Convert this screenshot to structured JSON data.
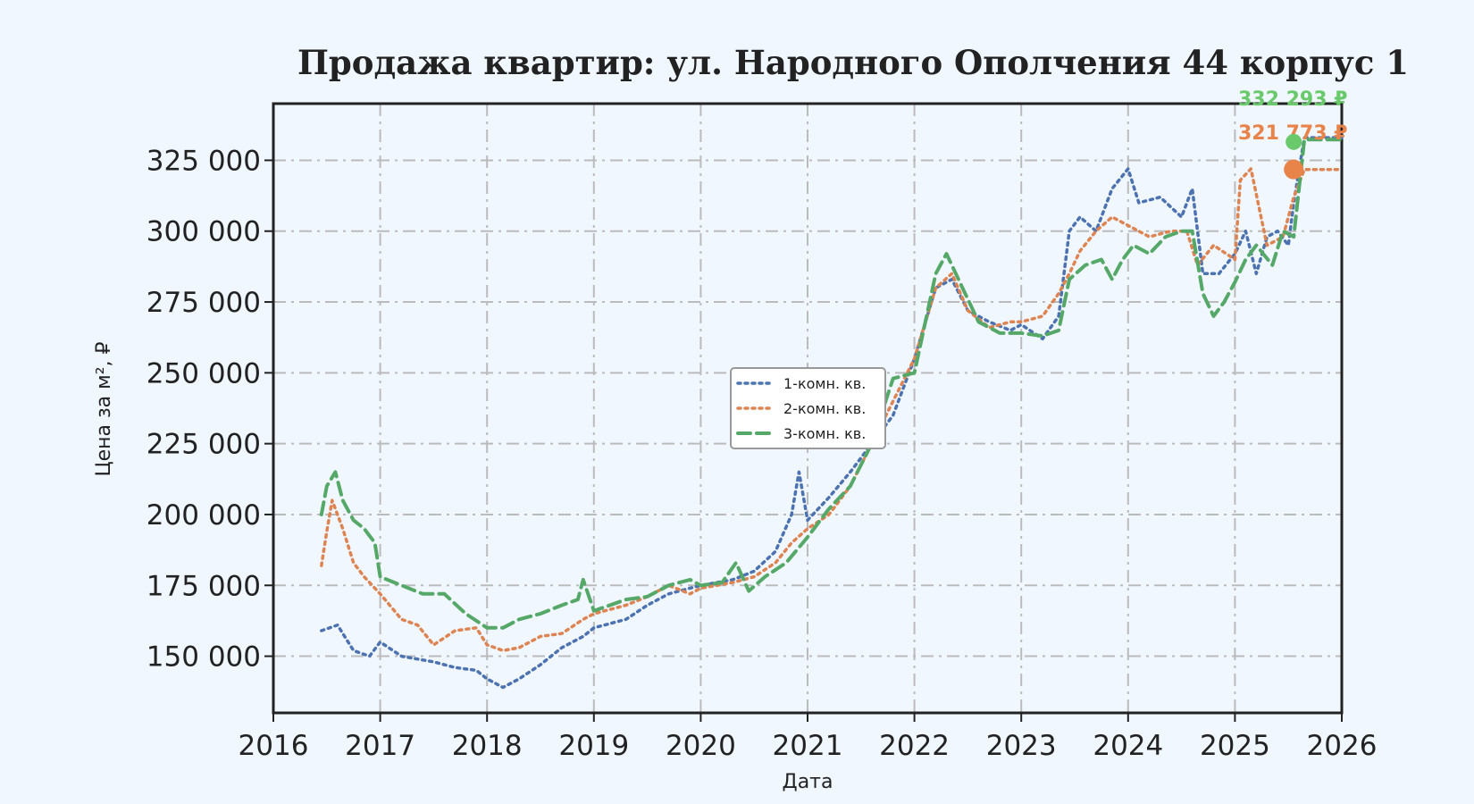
{
  "chart_data": {
    "type": "line",
    "title": "Продажа квартир: ул. Народного Ополчения 44 корпус 1",
    "xlabel": "Дата",
    "ylabel": "Цена за м², ₽",
    "xlim": [
      2016.0,
      2026.0
    ],
    "ylim": [
      130000,
      345000
    ],
    "x_ticks": [
      2016,
      2017,
      2018,
      2019,
      2020,
      2021,
      2022,
      2023,
      2024,
      2025,
      2026
    ],
    "x_tick_labels": [
      "2016",
      "2017",
      "2018",
      "2019",
      "2020",
      "2021",
      "2022",
      "2023",
      "2024",
      "2025",
      "2026"
    ],
    "y_ticks": [
      150000,
      175000,
      200000,
      225000,
      250000,
      275000,
      300000,
      325000
    ],
    "y_tick_labels": [
      "150 000",
      "175 000",
      "200 000",
      "225 000",
      "250 000",
      "275 000",
      "300 000",
      "325 000"
    ],
    "grid": true,
    "legend_position": "center",
    "series": [
      {
        "name": "1-комн. кв.",
        "color": "#4c72b0",
        "dash": "dotted",
        "x": [
          2016.45,
          2016.6,
          2016.75,
          2016.9,
          2017.0,
          2017.2,
          2017.5,
          2017.7,
          2017.9,
          2018.0,
          2018.15,
          2018.3,
          2018.5,
          2018.7,
          2018.9,
          2019.0,
          2019.3,
          2019.5,
          2019.7,
          2019.9,
          2020.0,
          2020.3,
          2020.5,
          2020.7,
          2020.85,
          2020.92,
          2021.0,
          2021.2,
          2021.4,
          2021.6,
          2021.8,
          2022.0,
          2022.2,
          2022.35,
          2022.5,
          2022.7,
          2022.9,
          2023.0,
          2023.2,
          2023.35,
          2023.45,
          2023.55,
          2023.7,
          2023.85,
          2024.0,
          2024.1,
          2024.3,
          2024.5,
          2024.6,
          2024.7,
          2024.85,
          2025.0,
          2025.1,
          2025.2,
          2025.3,
          2025.4,
          2025.5,
          2025.55,
          2025.65,
          2026.0
        ],
        "y": [
          159000,
          161000,
          152000,
          150000,
          155000,
          150000,
          148000,
          146000,
          145000,
          142000,
          139000,
          142000,
          147000,
          153000,
          157000,
          160000,
          163000,
          168000,
          172000,
          174000,
          175000,
          177000,
          180000,
          187000,
          200000,
          215000,
          198000,
          206000,
          215000,
          225000,
          235000,
          255000,
          280000,
          283000,
          272000,
          268000,
          265000,
          267000,
          262000,
          270000,
          300000,
          305000,
          300000,
          315000,
          322000,
          310000,
          312000,
          305000,
          315000,
          285000,
          285000,
          292000,
          300000,
          285000,
          298000,
          300000,
          295000,
          310000,
          333000,
          333000
        ]
      },
      {
        "name": "2-комн. кв.",
        "color": "#dd8452",
        "dash": "dotted",
        "x": [
          2016.45,
          2016.5,
          2016.55,
          2016.65,
          2016.75,
          2016.85,
          2017.0,
          2017.2,
          2017.35,
          2017.5,
          2017.7,
          2017.9,
          2018.0,
          2018.15,
          2018.3,
          2018.5,
          2018.7,
          2018.9,
          2019.0,
          2019.3,
          2019.5,
          2019.7,
          2019.9,
          2020.0,
          2020.3,
          2020.5,
          2020.7,
          2020.85,
          2021.0,
          2021.2,
          2021.4,
          2021.6,
          2021.8,
          2022.0,
          2022.2,
          2022.35,
          2022.5,
          2022.7,
          2022.9,
          2023.0,
          2023.2,
          2023.35,
          2023.45,
          2023.55,
          2023.7,
          2023.85,
          2024.0,
          2024.2,
          2024.4,
          2024.55,
          2024.65,
          2024.8,
          2025.0,
          2025.05,
          2025.15,
          2025.3,
          2025.45,
          2025.55,
          2025.65,
          2026.0
        ],
        "y": [
          182000,
          194000,
          205000,
          195000,
          183000,
          178000,
          172000,
          163000,
          161000,
          154000,
          159000,
          160000,
          154000,
          152000,
          153000,
          157000,
          158000,
          163000,
          165000,
          168000,
          171000,
          175000,
          172000,
          174000,
          176000,
          178000,
          183000,
          190000,
          195000,
          200000,
          210000,
          225000,
          240000,
          255000,
          280000,
          285000,
          272000,
          266000,
          268000,
          268000,
          270000,
          278000,
          285000,
          293000,
          300000,
          305000,
          302000,
          298000,
          300000,
          300000,
          288000,
          295000,
          290000,
          318000,
          322000,
          295000,
          298000,
          312000,
          321773,
          321773
        ]
      },
      {
        "name": "3-комн. кв.",
        "color": "#55a868",
        "dash": "dashed",
        "x": [
          2016.45,
          2016.5,
          2016.58,
          2016.65,
          2016.75,
          2016.85,
          2016.95,
          2017.0,
          2017.2,
          2017.4,
          2017.6,
          2017.8,
          2018.0,
          2018.15,
          2018.3,
          2018.5,
          2018.7,
          2018.85,
          2018.9,
          2019.0,
          2019.3,
          2019.5,
          2019.7,
          2019.9,
          2020.0,
          2020.2,
          2020.33,
          2020.45,
          2020.6,
          2020.8,
          2021.0,
          2021.2,
          2021.4,
          2021.6,
          2021.8,
          2022.0,
          2022.2,
          2022.3,
          2022.45,
          2022.6,
          2022.8,
          2023.0,
          2023.2,
          2023.35,
          2023.45,
          2023.6,
          2023.75,
          2023.85,
          2023.95,
          2024.05,
          2024.2,
          2024.35,
          2024.5,
          2024.6,
          2024.7,
          2024.8,
          2024.9,
          2025.0,
          2025.1,
          2025.2,
          2025.35,
          2025.45,
          2025.55,
          2025.65,
          2026.0
        ],
        "y": [
          200000,
          210000,
          215000,
          205000,
          198000,
          195000,
          190000,
          178000,
          175000,
          172000,
          172000,
          165000,
          160000,
          160000,
          163000,
          165000,
          168000,
          170000,
          177000,
          166000,
          170000,
          171000,
          175000,
          177000,
          175000,
          176000,
          183000,
          173000,
          178000,
          183000,
          192000,
          202000,
          210000,
          225000,
          248000,
          250000,
          285000,
          292000,
          280000,
          268000,
          264000,
          264000,
          263000,
          265000,
          283000,
          288000,
          290000,
          283000,
          290000,
          295000,
          292000,
          298000,
          300000,
          300000,
          278000,
          270000,
          275000,
          282000,
          290000,
          295000,
          288000,
          300000,
          298000,
          332293,
          332293
        ]
      }
    ],
    "end_labels": [
      {
        "text": "332 293 ₽",
        "color": "#6ac96b",
        "marker": {
          "x": 2025.55,
          "y": 331500
        }
      },
      {
        "text": "321 773 ₽",
        "color": "#e8834a",
        "marker": {
          "x": 2025.55,
          "y": 321773
        }
      }
    ]
  }
}
